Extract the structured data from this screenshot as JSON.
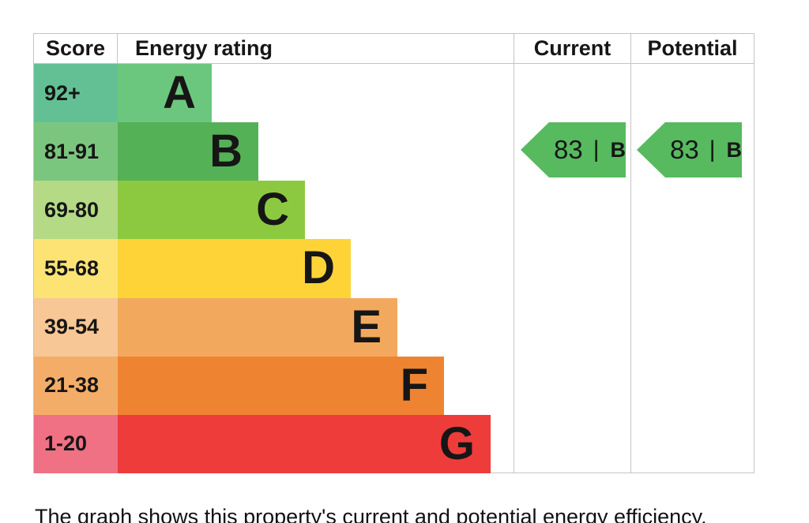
{
  "header": {
    "score": "Score",
    "energy_rating": "Energy rating",
    "current": "Current",
    "potential": "Potential"
  },
  "bands": [
    {
      "letter": "A",
      "range": "92+",
      "bar_color": "#6cc77e",
      "score_color": "#63c095"
    },
    {
      "letter": "B",
      "range": "81-91",
      "bar_color": "#55b155",
      "score_color": "#7bc67e"
    },
    {
      "letter": "C",
      "range": "69-80",
      "bar_color": "#8dc940",
      "score_color": "#b4da86"
    },
    {
      "letter": "D",
      "range": "55-68",
      "bar_color": "#fdd338",
      "score_color": "#fce374"
    },
    {
      "letter": "E",
      "range": "39-54",
      "bar_color": "#f2a95e",
      "score_color": "#f7c795"
    },
    {
      "letter": "F",
      "range": "21-38",
      "bar_color": "#ee8431",
      "score_color": "#f4ad69"
    },
    {
      "letter": "G",
      "range": "1-20",
      "bar_color": "#ee3c3b",
      "score_color": "#ef7183"
    }
  ],
  "arrows": {
    "color": "#57ba5f",
    "separator": "|",
    "current": {
      "value": "83",
      "band": "B"
    },
    "potential": {
      "value": "83",
      "band": "B"
    }
  },
  "caption": "The graph shows this property's current and potential energy efficiency.",
  "chart_data": {
    "type": "bar",
    "title": "Energy rating",
    "categories": [
      "A",
      "B",
      "C",
      "D",
      "E",
      "F",
      "G"
    ],
    "score_ranges": [
      "92+",
      "81-91",
      "69-80",
      "55-68",
      "39-54",
      "21-38",
      "1-20"
    ],
    "band_colors": [
      "#6cc77e",
      "#55b155",
      "#8dc940",
      "#fdd338",
      "#f2a95e",
      "#ee8431",
      "#ee3c3b"
    ],
    "series": [
      {
        "name": "Current",
        "value": 83,
        "band": "B"
      },
      {
        "name": "Potential",
        "value": 83,
        "band": "B"
      }
    ],
    "legend_position": "none",
    "grid": false
  }
}
